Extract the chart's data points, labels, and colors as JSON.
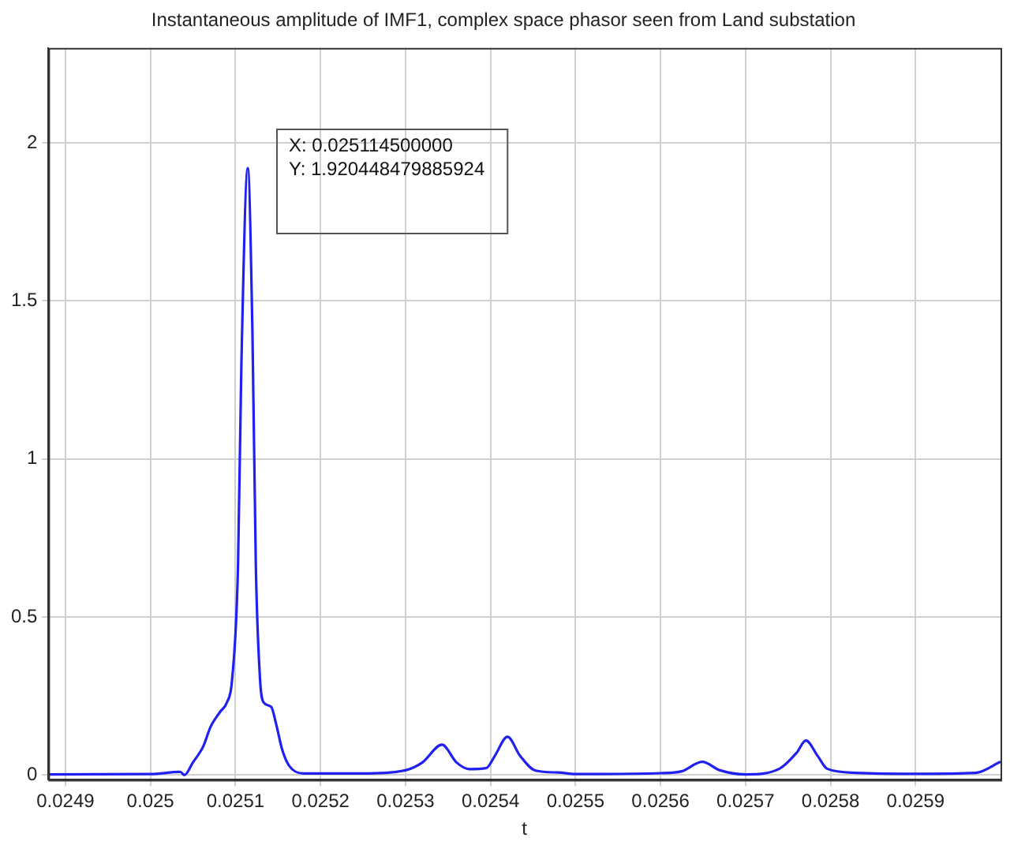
{
  "chart_data": {
    "type": "line",
    "title": "Instantaneous amplitude of IMF1, complex space phasor seen from Land substation",
    "xlabel": "t",
    "x": [
      0.02488,
      0.025,
      0.025035,
      0.02504,
      0.02505,
      0.025062,
      0.025071,
      0.025082,
      0.02509,
      0.025096,
      0.025103,
      0.025107,
      0.0251145,
      0.02512,
      0.025124,
      0.025129,
      0.025133,
      0.025142,
      0.025148,
      0.025155,
      0.025163,
      0.02518,
      0.02525,
      0.0253,
      0.02532,
      0.025343,
      0.02536,
      0.025375,
      0.025395,
      0.025405,
      0.02542,
      0.025435,
      0.025453,
      0.02548,
      0.0255,
      0.0256,
      0.025625,
      0.025649,
      0.02567,
      0.0257,
      0.02574,
      0.02576,
      0.025771,
      0.025785,
      0.025796,
      0.02583,
      0.0259,
      0.025971,
      0.026
    ],
    "series": [
      {
        "color": "#2020f0",
        "values": [
          0.002,
          0.003,
          0.01,
          0.0,
          0.04,
          0.09,
          0.154,
          0.2,
          0.23,
          0.3,
          0.66,
          1.3,
          1.92,
          1.4,
          0.66,
          0.3,
          0.23,
          0.216,
          0.16,
          0.08,
          0.03,
          0.005,
          0.005,
          0.015,
          0.04,
          0.096,
          0.04,
          0.019,
          0.022,
          0.06,
          0.121,
          0.06,
          0.014,
          0.008,
          0.003,
          0.006,
          0.012,
          0.042,
          0.015,
          0.002,
          0.02,
          0.07,
          0.109,
          0.06,
          0.02,
          0.007,
          0.004,
          0.007,
          0.042
        ]
      }
    ],
    "xlim": [
      0.02488,
      0.026
    ],
    "xticks": [
      0.0249,
      0.025,
      0.0251,
      0.0252,
      0.0253,
      0.0254,
      0.0255,
      0.0256,
      0.0257,
      0.0258,
      0.0259
    ],
    "ylim": [
      -0.015,
      2.3
    ],
    "yticks": [
      0,
      0.5,
      1,
      1.5,
      2
    ],
    "grid": true,
    "legend": false,
    "marker": "none",
    "line_style": "solid",
    "annotations": [
      {
        "text": "X: 0.025114500000\nY: 1.920448479885924",
        "x": 0.0251145,
        "y": 1.92
      }
    ]
  }
}
